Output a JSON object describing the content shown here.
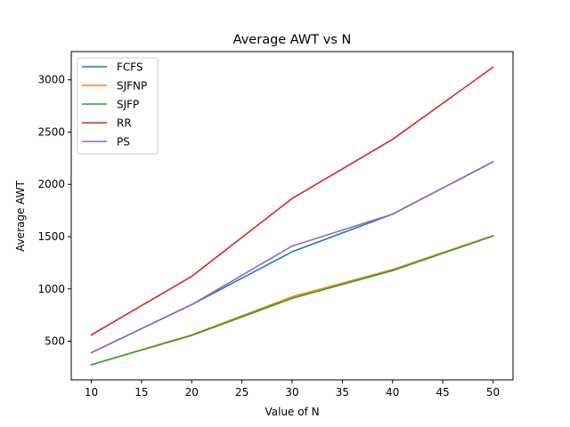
{
  "chart_data": {
    "type": "line",
    "title": "Average AWT vs N",
    "xlabel": "Value of N",
    "ylabel": "Average AWT",
    "x": [
      10,
      20,
      30,
      40,
      50
    ],
    "xlim": [
      8,
      52
    ],
    "ylim": [
      130,
      3270
    ],
    "xticks": [
      10,
      15,
      20,
      25,
      30,
      35,
      40,
      45,
      50
    ],
    "yticks": [
      500,
      1000,
      1500,
      2000,
      2500,
      3000
    ],
    "grid": false,
    "legend_position": "top-left",
    "series": [
      {
        "name": "FCFS",
        "color": "#1f77b4",
        "values": [
          390,
          850,
          1355,
          1715,
          2215
        ]
      },
      {
        "name": "SJFNP",
        "color": "#ff7f0e",
        "values": [
          275,
          560,
          925,
          1185,
          1510
        ]
      },
      {
        "name": "SJFP",
        "color": "#2ca02c",
        "values": [
          275,
          555,
          910,
          1175,
          1505
        ]
      },
      {
        "name": "RR",
        "color": "#d62728",
        "values": [
          560,
          1120,
          1865,
          2430,
          3120
        ]
      },
      {
        "name": "PS",
        "color": "#9467bd",
        "values": [
          390,
          850,
          1410,
          1715,
          2215
        ]
      }
    ]
  }
}
